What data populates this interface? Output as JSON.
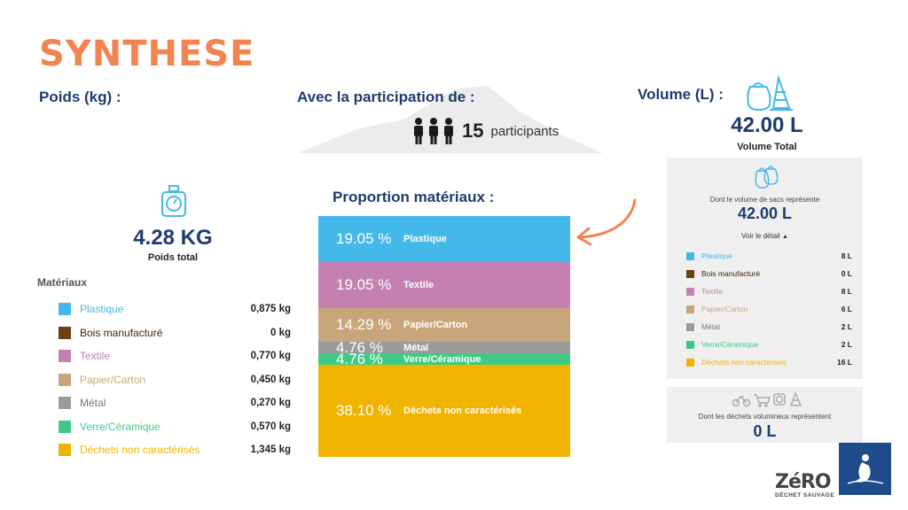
{
  "title": "SYNTHESE",
  "weight": {
    "label": "Poids (kg) :",
    "total": "4.28 KG",
    "total_caption": "Poids total",
    "materials_heading": "Matériaux",
    "items": [
      {
        "name": "Plastique",
        "value": "0,875 kg",
        "color": "#45b8ea"
      },
      {
        "name": "Bois manufacturé",
        "value": "0 kg",
        "color": "#6b3f10"
      },
      {
        "name": "Textile",
        "value": "0,770 kg",
        "color": "#c380b0"
      },
      {
        "name": "Papier/Carton",
        "value": "0,450 kg",
        "color": "#c9a57a"
      },
      {
        "name": "Métal",
        "value": "0,270 kg",
        "color": "#9b9b9b"
      },
      {
        "name": "Verre/Céramique",
        "value": "0,570 kg",
        "color": "#3ec985"
      },
      {
        "name": "Déchets non caractérisés",
        "value": "1,345 kg",
        "color": "#f0b400"
      }
    ]
  },
  "participation": {
    "label": "Avec la participation de :",
    "count": "15",
    "unit": "participants"
  },
  "chart_data": {
    "type": "bar",
    "stacked": true,
    "title": "Proportion matériaux :",
    "categories": [
      "Plastique",
      "Textile",
      "Papier/Carton",
      "Métal",
      "Verre/Céramique",
      "Déchets non caractérisés"
    ],
    "values": [
      19.05,
      19.05,
      14.29,
      4.76,
      4.76,
      38.1
    ],
    "labels": [
      "19.05 %",
      "19.05 %",
      "14.29 %",
      "4.76 %",
      "4.76 %",
      "38.10 %"
    ],
    "colors": [
      "#45b8ea",
      "#c380b0",
      "#c9a57a",
      "#9b9b9b",
      "#3ec985",
      "#f0b400"
    ]
  },
  "volume": {
    "label": "Volume (L) :",
    "total": "42.00 L",
    "total_caption": "Volume Total",
    "bags_caption": "Dont le volume de sacs représente",
    "bags_total": "42.00 L",
    "detail_link": "Voir le détail",
    "items": [
      {
        "name": "Plastique",
        "value": "8 L",
        "color": "#45b8ea"
      },
      {
        "name": "Bois manufacturé",
        "value": "0 L",
        "color": "#6b3f10"
      },
      {
        "name": "Textile",
        "value": "8 L",
        "color": "#c380b0"
      },
      {
        "name": "Papier/Carton",
        "value": "6 L",
        "color": "#c9a57a"
      },
      {
        "name": "Métal",
        "value": "2 L",
        "color": "#9b9b9b"
      },
      {
        "name": "Verre/Céramique",
        "value": "2 L",
        "color": "#3ec985"
      },
      {
        "name": "Déchets non caractérisés",
        "value": "16 L",
        "color": "#f0b400"
      }
    ],
    "bulky_caption": "Dont les déchets volumineux représentent",
    "bulky_total": "0 L"
  },
  "logos": {
    "zero": "ZéRO",
    "zero_sub": "DÉCHET SAUVAGE"
  },
  "accent_color": "#f2844f",
  "text_color": "#1f3c6e"
}
